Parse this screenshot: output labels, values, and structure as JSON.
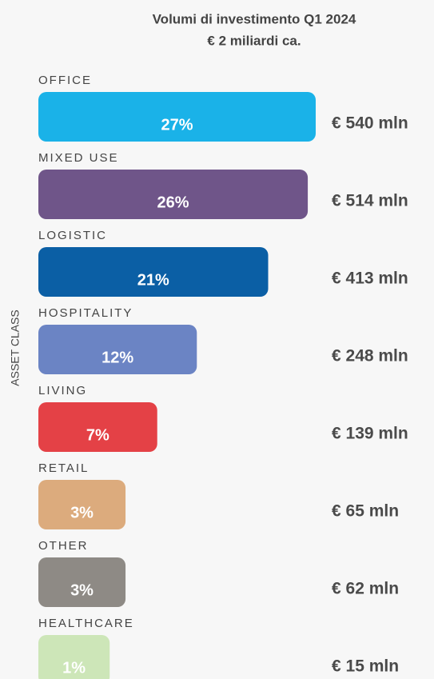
{
  "chart_data": {
    "type": "bar",
    "orientation": "horizontal",
    "title": "Volumi di investimento Q1 2024",
    "subtitle": "€ 2 miliardi ca.",
    "y_label": "ASSET CLASS",
    "categories": [
      "OFFICE",
      "MIXED USE",
      "LOGISTIC",
      "HOSPITALITY",
      "LIVING",
      "RETAIL",
      "OTHER",
      "HEALTHCARE"
    ],
    "values": [
      27,
      26,
      21,
      12,
      7,
      3,
      3,
      1
    ],
    "value_labels": [
      "27%",
      "26%",
      "21%",
      "12%",
      "7%",
      "3%",
      "3%",
      "1%"
    ],
    "amounts": [
      540,
      514,
      413,
      248,
      139,
      65,
      62,
      15
    ],
    "amount_labels": [
      "€ 540 mln",
      "€ 514 mln",
      "€ 413 mln",
      "€ 248 mln",
      "€ 139 mln",
      "€ 65 mln",
      "€ 62 mln",
      "€ 15 mln"
    ],
    "colors": [
      "#1ab2e8",
      "#6f5589",
      "#0b5fa5",
      "#6b84c4",
      "#e44146",
      "#dcab7d",
      "#8e8a85",
      "#cde6b8"
    ],
    "xlim": [
      -8,
      27
    ]
  }
}
